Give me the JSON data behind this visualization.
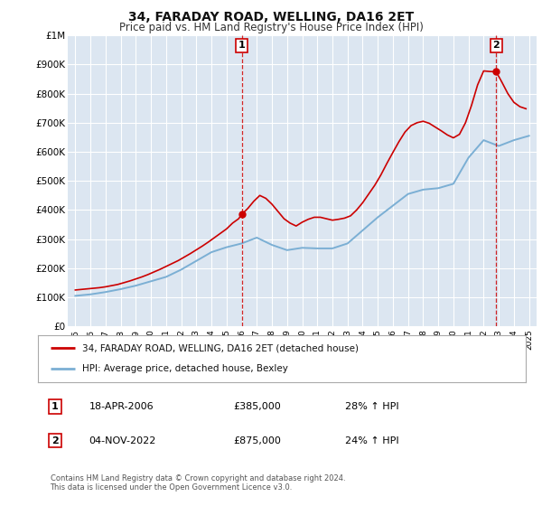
{
  "title": "34, FARADAY ROAD, WELLING, DA16 2ET",
  "subtitle": "Price paid vs. HM Land Registry's House Price Index (HPI)",
  "plot_bg_color": "#dce6f1",
  "fig_bg_color": "#ffffff",
  "grid_color": "#ffffff",
  "red_line_color": "#cc0000",
  "blue_line_color": "#7bafd4",
  "annotation1_date": "18-APR-2006",
  "annotation1_price": "£385,000",
  "annotation1_hpi": "28% ↑ HPI",
  "annotation2_date": "04-NOV-2022",
  "annotation2_price": "£875,000",
  "annotation2_hpi": "24% ↑ HPI",
  "legend_label_red": "34, FARADAY ROAD, WELLING, DA16 2ET (detached house)",
  "legend_label_blue": "HPI: Average price, detached house, Bexley",
  "footer": "Contains HM Land Registry data © Crown copyright and database right 2024.\nThis data is licensed under the Open Government Licence v3.0.",
  "ylim_min": 0,
  "ylim_max": 1000000,
  "yticks": [
    0,
    100000,
    200000,
    300000,
    400000,
    500000,
    600000,
    700000,
    800000,
    900000,
    1000000
  ],
  "ytick_labels": [
    "£0",
    "£100K",
    "£200K",
    "£300K",
    "£400K",
    "£500K",
    "£600K",
    "£700K",
    "£800K",
    "£900K",
    "£1M"
  ],
  "hpi_x": [
    1995,
    1996,
    1997,
    1998,
    1999,
    2000,
    2001,
    2002,
    2003,
    2004,
    2005,
    2006,
    2007,
    2008,
    2009,
    2010,
    2011,
    2012,
    2013,
    2014,
    2015,
    2016,
    2017,
    2018,
    2019,
    2020,
    2021,
    2022,
    2023,
    2024,
    2025
  ],
  "hpi_y": [
    105000,
    110000,
    118000,
    128000,
    140000,
    155000,
    170000,
    195000,
    225000,
    255000,
    272000,
    285000,
    305000,
    280000,
    262000,
    270000,
    268000,
    268000,
    285000,
    330000,
    375000,
    415000,
    455000,
    470000,
    475000,
    490000,
    580000,
    640000,
    620000,
    640000,
    655000
  ],
  "red_x": [
    1995.0,
    1995.4,
    1995.8,
    1996.2,
    1996.6,
    1997.0,
    1997.4,
    1997.8,
    1998.2,
    1998.6,
    1999.0,
    1999.4,
    1999.8,
    2000.2,
    2000.6,
    2001.0,
    2001.4,
    2001.8,
    2002.2,
    2002.6,
    2003.0,
    2003.4,
    2003.8,
    2004.2,
    2004.6,
    2005.0,
    2005.4,
    2005.8,
    2006.0,
    2006.4,
    2006.8,
    2007.2,
    2007.6,
    2008.0,
    2008.4,
    2008.8,
    2009.2,
    2009.6,
    2010.0,
    2010.4,
    2010.8,
    2011.2,
    2011.6,
    2012.0,
    2012.4,
    2012.8,
    2013.2,
    2013.6,
    2014.0,
    2014.4,
    2014.8,
    2015.2,
    2015.6,
    2016.0,
    2016.4,
    2016.8,
    2017.2,
    2017.6,
    2018.0,
    2018.4,
    2018.8,
    2019.2,
    2019.6,
    2020.0,
    2020.4,
    2020.8,
    2021.2,
    2021.6,
    2022.0,
    2022.4,
    2022.83,
    2023.2,
    2023.6,
    2024.0,
    2024.4,
    2024.8
  ],
  "red_y": [
    125000,
    127000,
    129000,
    131000,
    133000,
    136000,
    140000,
    144000,
    150000,
    156000,
    163000,
    170000,
    178000,
    187000,
    196000,
    206000,
    216000,
    226000,
    238000,
    250000,
    263000,
    276000,
    290000,
    305000,
    320000,
    335000,
    355000,
    370000,
    385000,
    405000,
    430000,
    450000,
    440000,
    420000,
    395000,
    370000,
    355000,
    345000,
    358000,
    368000,
    375000,
    375000,
    370000,
    365000,
    368000,
    372000,
    380000,
    400000,
    425000,
    455000,
    485000,
    520000,
    560000,
    598000,
    635000,
    668000,
    690000,
    700000,
    705000,
    698000,
    685000,
    672000,
    658000,
    648000,
    660000,
    700000,
    760000,
    830000,
    878000,
    876000,
    875000,
    840000,
    800000,
    770000,
    755000,
    748000
  ],
  "marker1_x": 2006.0,
  "marker1_y": 385000,
  "marker2_x": 2022.83,
  "marker2_y": 875000,
  "xlim_min": 1994.5,
  "xlim_max": 2025.5
}
